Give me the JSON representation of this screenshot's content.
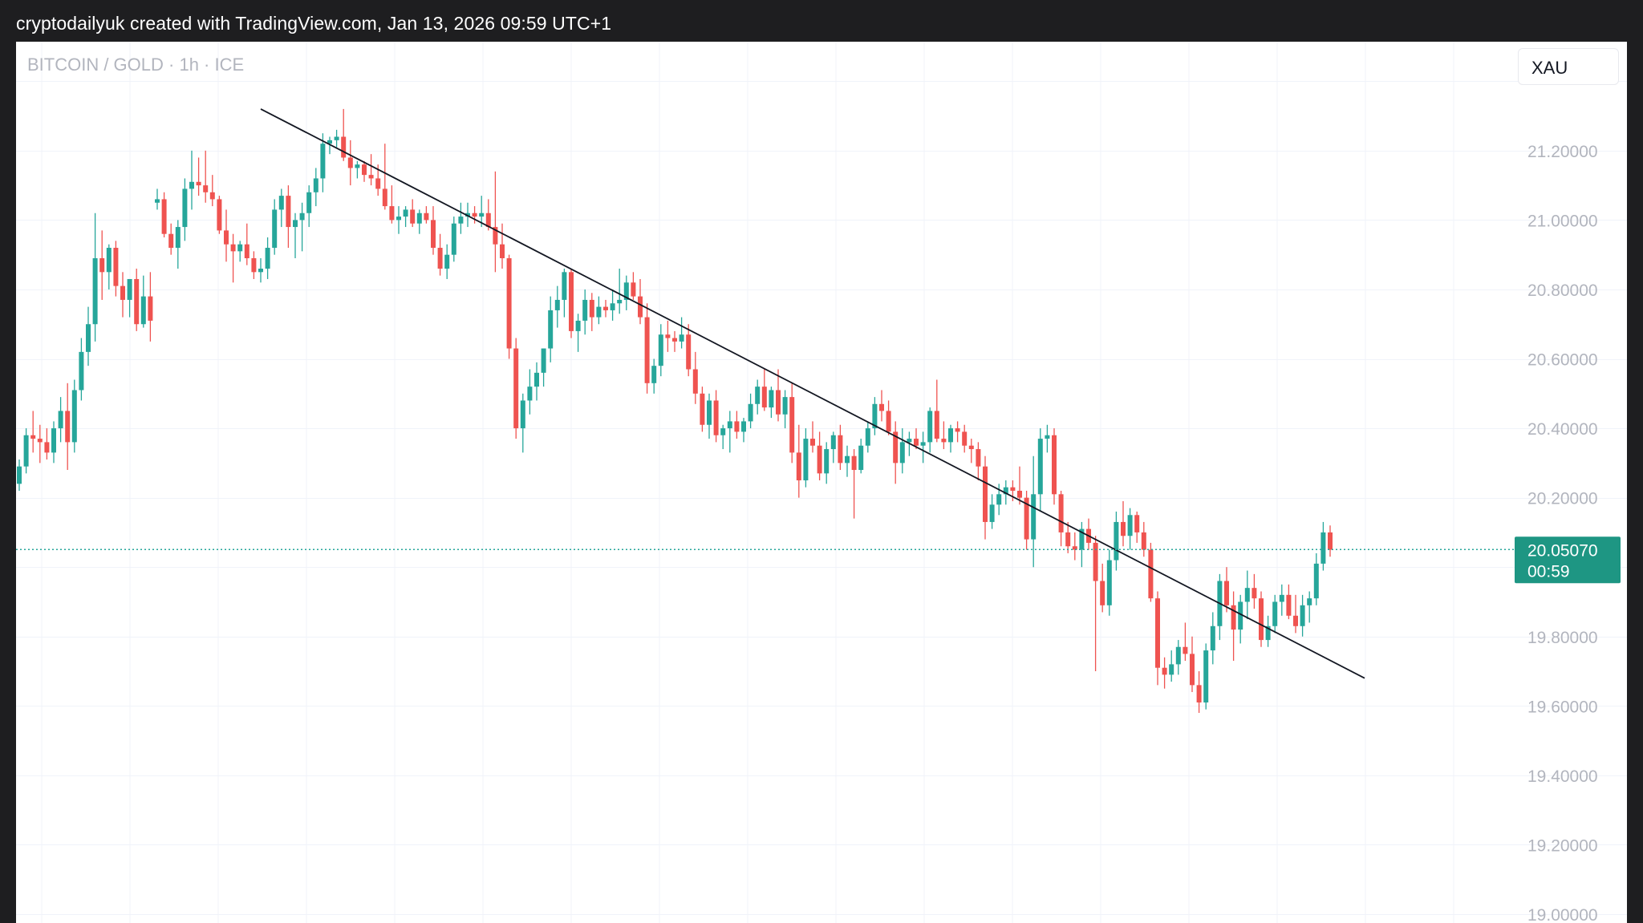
{
  "header": {
    "text": "cryptodailyuk created with TradingView.com, Jan 13, 2026 09:59 UTC+1"
  },
  "symbol": {
    "label": "BITCOIN / GOLD · 1h · ICE",
    "compare": "XAU"
  },
  "chart_data": {
    "type": "candlestick",
    "title": "",
    "ylim": [
      19.0,
      21.45
    ],
    "y_ticks": [
      "21.20000",
      "21.00000",
      "20.80000",
      "20.60000",
      "20.40000",
      "20.20000",
      "19.80000",
      "19.60000",
      "19.40000",
      "19.20000",
      "19.00000"
    ],
    "y_tick_values": [
      21.2,
      21.0,
      20.8,
      20.6,
      20.4,
      20.2,
      19.8,
      19.6,
      19.4,
      19.2,
      19.0
    ],
    "last_price": {
      "value": 20.0507,
      "label": "20.05070",
      "countdown": "00:59"
    },
    "trendline": {
      "from": {
        "bar": 35,
        "price": 21.32
      },
      "to": {
        "bar": 195,
        "price": 19.68
      }
    },
    "colors": {
      "up": "#26a69a",
      "down": "#ef5350",
      "price_tag": "#1e9683",
      "grid": "#f0f3fa",
      "trendline": "#131722"
    },
    "candles": [
      [
        20.24,
        20.31,
        20.22,
        20.29
      ],
      [
        20.29,
        20.4,
        20.27,
        20.38
      ],
      [
        20.38,
        20.45,
        20.33,
        20.37
      ],
      [
        20.37,
        20.41,
        20.3,
        20.36
      ],
      [
        20.36,
        20.4,
        20.31,
        20.33
      ],
      [
        20.33,
        20.42,
        20.3,
        20.4
      ],
      [
        20.4,
        20.49,
        20.36,
        20.45
      ],
      [
        20.45,
        20.53,
        20.28,
        20.36
      ],
      [
        20.36,
        20.54,
        20.33,
        20.51
      ],
      [
        20.51,
        20.66,
        20.48,
        20.62
      ],
      [
        20.62,
        20.75,
        20.58,
        20.7
      ],
      [
        20.7,
        21.02,
        20.65,
        20.89
      ],
      [
        20.89,
        20.97,
        20.77,
        20.85
      ],
      [
        20.85,
        20.93,
        20.8,
        20.92
      ],
      [
        20.92,
        20.94,
        20.78,
        20.81
      ],
      [
        20.81,
        20.85,
        20.72,
        20.77
      ],
      [
        20.77,
        20.83,
        20.72,
        20.83
      ],
      [
        20.83,
        20.86,
        20.68,
        20.7
      ],
      [
        20.7,
        20.84,
        20.69,
        20.78
      ],
      [
        20.78,
        20.85,
        20.65,
        20.71
      ],
      [
        21.05,
        21.09,
        21.03,
        21.06
      ],
      [
        21.06,
        21.08,
        20.95,
        20.96
      ],
      [
        20.96,
        20.99,
        20.9,
        20.92
      ],
      [
        20.92,
        21.0,
        20.86,
        20.98
      ],
      [
        20.98,
        21.12,
        20.94,
        21.09
      ],
      [
        21.09,
        21.2,
        21.03,
        21.11
      ],
      [
        21.11,
        21.18,
        21.07,
        21.1
      ],
      [
        21.1,
        21.2,
        21.05,
        21.08
      ],
      [
        21.08,
        21.13,
        21.04,
        21.06
      ],
      [
        21.06,
        21.07,
        20.96,
        20.97
      ],
      [
        20.97,
        21.03,
        20.88,
        20.93
      ],
      [
        20.93,
        20.96,
        20.82,
        20.91
      ],
      [
        20.91,
        20.94,
        20.88,
        20.93
      ],
      [
        20.93,
        20.99,
        20.87,
        20.89
      ],
      [
        20.89,
        20.91,
        20.83,
        20.85
      ],
      [
        20.85,
        20.89,
        20.82,
        20.86
      ],
      [
        20.86,
        20.95,
        20.83,
        20.92
      ],
      [
        20.92,
        21.06,
        20.9,
        21.03
      ],
      [
        21.03,
        21.09,
        20.98,
        21.07
      ],
      [
        21.07,
        21.1,
        20.92,
        20.98
      ],
      [
        20.98,
        21.02,
        20.89,
        21.0
      ],
      [
        21.0,
        21.05,
        20.91,
        21.02
      ],
      [
        21.02,
        21.1,
        20.98,
        21.08
      ],
      [
        21.08,
        21.15,
        21.04,
        21.12
      ],
      [
        21.12,
        21.25,
        21.08,
        21.22
      ],
      [
        21.22,
        21.24,
        21.19,
        21.23
      ],
      [
        21.23,
        21.26,
        21.21,
        21.24
      ],
      [
        21.24,
        21.32,
        21.17,
        21.18
      ],
      [
        21.18,
        21.23,
        21.1,
        21.15
      ],
      [
        21.15,
        21.17,
        21.12,
        21.16
      ],
      [
        21.16,
        21.17,
        21.11,
        21.13
      ],
      [
        21.13,
        21.19,
        21.1,
        21.12
      ],
      [
        21.12,
        21.16,
        21.07,
        21.09
      ],
      [
        21.09,
        21.22,
        21.03,
        21.04
      ],
      [
        21.04,
        21.1,
        20.99,
        21.0
      ],
      [
        21.0,
        21.04,
        20.96,
        21.01
      ],
      [
        21.01,
        21.04,
        20.98,
        21.03
      ],
      [
        21.03,
        21.06,
        20.98,
        20.99
      ],
      [
        20.99,
        21.03,
        20.96,
        21.02
      ],
      [
        21.02,
        21.04,
        20.99,
        21.0
      ],
      [
        21.0,
        21.04,
        20.9,
        20.92
      ],
      [
        20.92,
        20.96,
        20.84,
        20.86
      ],
      [
        20.86,
        20.93,
        20.83,
        20.9
      ],
      [
        20.9,
        21.01,
        20.88,
        20.99
      ],
      [
        20.99,
        21.05,
        20.96,
        21.01
      ],
      [
        21.01,
        21.05,
        20.98,
        21.02
      ],
      [
        21.02,
        21.04,
        20.99,
        21.01
      ],
      [
        21.01,
        21.07,
        20.98,
        21.02
      ],
      [
        21.02,
        21.06,
        20.97,
        20.98
      ],
      [
        20.98,
        21.14,
        20.85,
        20.93
      ],
      [
        20.93,
        20.99,
        20.86,
        20.89
      ],
      [
        20.89,
        20.9,
        20.6,
        20.63
      ],
      [
        20.63,
        20.66,
        20.37,
        20.4
      ],
      [
        20.4,
        20.5,
        20.33,
        20.48
      ],
      [
        20.48,
        20.57,
        20.44,
        20.52
      ],
      [
        20.52,
        20.59,
        20.48,
        20.56
      ],
      [
        20.56,
        20.63,
        20.52,
        20.63
      ],
      [
        20.63,
        20.78,
        20.59,
        20.74
      ],
      [
        20.74,
        20.81,
        20.69,
        20.77
      ],
      [
        20.77,
        20.86,
        20.72,
        20.85
      ],
      [
        20.85,
        20.86,
        20.66,
        20.68
      ],
      [
        20.68,
        20.73,
        20.62,
        20.71
      ],
      [
        20.71,
        20.8,
        20.67,
        20.77
      ],
      [
        20.77,
        20.79,
        20.68,
        20.72
      ],
      [
        20.72,
        20.78,
        20.7,
        20.75
      ],
      [
        20.75,
        20.77,
        20.72,
        20.74
      ],
      [
        20.74,
        20.8,
        20.71,
        20.76
      ],
      [
        20.76,
        20.86,
        20.73,
        20.77
      ],
      [
        20.77,
        20.84,
        20.74,
        20.82
      ],
      [
        20.82,
        20.85,
        20.77,
        20.78
      ],
      [
        20.78,
        20.83,
        20.7,
        20.72
      ],
      [
        20.72,
        20.76,
        20.5,
        20.53
      ],
      [
        20.53,
        20.6,
        20.5,
        20.58
      ],
      [
        20.58,
        20.7,
        20.55,
        20.67
      ],
      [
        20.67,
        20.71,
        20.62,
        20.66
      ],
      [
        20.66,
        20.68,
        20.62,
        20.65
      ],
      [
        20.65,
        20.72,
        20.63,
        20.67
      ],
      [
        20.67,
        20.7,
        20.55,
        20.57
      ],
      [
        20.57,
        20.62,
        20.47,
        20.5
      ],
      [
        20.5,
        20.52,
        20.39,
        20.41
      ],
      [
        20.41,
        20.5,
        20.37,
        20.48
      ],
      [
        20.48,
        20.51,
        20.36,
        20.38
      ],
      [
        20.38,
        20.41,
        20.34,
        20.4
      ],
      [
        20.4,
        20.45,
        20.33,
        20.42
      ],
      [
        20.42,
        20.45,
        20.37,
        20.39
      ],
      [
        20.39,
        20.43,
        20.36,
        20.42
      ],
      [
        20.42,
        20.5,
        20.4,
        20.47
      ],
      [
        20.47,
        20.54,
        20.44,
        20.52
      ],
      [
        20.52,
        20.57,
        20.45,
        20.46
      ],
      [
        20.46,
        20.52,
        20.43,
        20.51
      ],
      [
        20.51,
        20.57,
        20.42,
        20.44
      ],
      [
        20.44,
        20.51,
        20.4,
        20.49
      ],
      [
        20.49,
        20.53,
        20.3,
        20.33
      ],
      [
        20.33,
        20.41,
        20.2,
        20.25
      ],
      [
        20.25,
        20.4,
        20.23,
        20.37
      ],
      [
        20.37,
        20.42,
        20.33,
        20.35
      ],
      [
        20.35,
        20.39,
        20.25,
        20.27
      ],
      [
        20.27,
        20.36,
        20.24,
        20.34
      ],
      [
        20.34,
        20.39,
        20.3,
        20.38
      ],
      [
        20.38,
        20.41,
        20.28,
        20.3
      ],
      [
        20.3,
        20.35,
        20.26,
        20.32
      ],
      [
        20.32,
        20.34,
        20.14,
        20.28
      ],
      [
        20.28,
        20.37,
        20.27,
        20.35
      ],
      [
        20.35,
        20.42,
        20.33,
        20.4
      ],
      [
        20.4,
        20.49,
        20.38,
        20.47
      ],
      [
        20.47,
        20.51,
        20.42,
        20.45
      ],
      [
        20.45,
        20.48,
        20.38,
        20.39
      ],
      [
        20.39,
        20.42,
        20.24,
        20.3
      ],
      [
        20.3,
        20.4,
        20.27,
        20.36
      ],
      [
        20.36,
        20.39,
        20.32,
        20.37
      ],
      [
        20.37,
        20.4,
        20.34,
        20.35
      ],
      [
        20.35,
        20.39,
        20.3,
        20.36
      ],
      [
        20.36,
        20.46,
        20.33,
        20.45
      ],
      [
        20.45,
        20.54,
        20.36,
        20.37
      ],
      [
        20.37,
        20.42,
        20.34,
        20.36
      ],
      [
        20.36,
        20.41,
        20.33,
        20.4
      ],
      [
        20.4,
        20.42,
        20.36,
        20.39
      ],
      [
        20.39,
        20.41,
        20.33,
        20.35
      ],
      [
        20.35,
        20.37,
        20.3,
        20.34
      ],
      [
        20.34,
        20.36,
        20.25,
        20.29
      ],
      [
        20.29,
        20.32,
        20.08,
        20.13
      ],
      [
        20.13,
        20.21,
        20.11,
        20.18
      ],
      [
        20.18,
        20.24,
        20.15,
        20.21
      ],
      [
        20.21,
        20.25,
        20.18,
        20.23
      ],
      [
        20.23,
        20.25,
        20.19,
        20.22
      ],
      [
        20.22,
        20.29,
        20.18,
        20.2
      ],
      [
        20.2,
        20.22,
        20.05,
        20.08
      ],
      [
        20.08,
        20.32,
        20.0,
        20.21
      ],
      [
        20.21,
        20.4,
        20.16,
        20.37
      ],
      [
        20.37,
        20.41,
        20.33,
        20.38
      ],
      [
        20.38,
        20.4,
        20.18,
        20.21
      ],
      [
        20.21,
        20.22,
        20.06,
        20.1
      ],
      [
        20.1,
        20.13,
        20.04,
        20.06
      ],
      [
        20.06,
        20.1,
        20.02,
        20.05
      ],
      [
        20.05,
        20.13,
        20.0,
        20.11
      ],
      [
        20.11,
        20.14,
        20.05,
        20.07
      ],
      [
        20.07,
        20.09,
        19.7,
        19.96
      ],
      [
        19.96,
        20.01,
        19.87,
        19.89
      ],
      [
        19.89,
        20.05,
        19.86,
        20.02
      ],
      [
        20.02,
        20.16,
        19.99,
        20.13
      ],
      [
        20.13,
        20.19,
        20.06,
        20.09
      ],
      [
        20.09,
        20.17,
        20.05,
        20.15
      ],
      [
        20.15,
        20.16,
        20.07,
        20.1
      ],
      [
        20.1,
        20.13,
        20.03,
        20.05
      ],
      [
        20.05,
        20.07,
        19.9,
        19.91
      ],
      [
        19.91,
        19.93,
        19.66,
        19.71
      ],
      [
        19.71,
        19.74,
        19.65,
        19.69
      ],
      [
        19.69,
        19.76,
        19.67,
        19.72
      ],
      [
        19.72,
        19.79,
        19.69,
        19.77
      ],
      [
        19.77,
        19.84,
        19.73,
        19.75
      ],
      [
        19.75,
        19.8,
        19.64,
        19.66
      ],
      [
        19.66,
        19.7,
        19.58,
        19.61
      ],
      [
        19.61,
        19.78,
        19.59,
        19.76
      ],
      [
        19.76,
        19.87,
        19.72,
        19.83
      ],
      [
        19.83,
        19.98,
        19.79,
        19.96
      ],
      [
        19.96,
        20.0,
        19.87,
        19.89
      ],
      [
        19.89,
        19.93,
        19.73,
        19.82
      ],
      [
        19.82,
        19.92,
        19.78,
        19.9
      ],
      [
        19.9,
        19.99,
        19.85,
        19.94
      ],
      [
        19.94,
        19.98,
        19.88,
        19.91
      ],
      [
        19.91,
        19.93,
        19.77,
        19.79
      ],
      [
        19.79,
        19.86,
        19.77,
        19.83
      ],
      [
        19.83,
        19.92,
        19.81,
        19.9
      ],
      [
        19.9,
        19.95,
        19.86,
        19.92
      ],
      [
        19.92,
        19.95,
        19.85,
        19.86
      ],
      [
        19.86,
        19.92,
        19.81,
        19.83
      ],
      [
        19.83,
        19.92,
        19.8,
        19.89
      ],
      [
        19.89,
        19.93,
        19.84,
        19.91
      ],
      [
        19.91,
        20.04,
        19.89,
        20.01
      ],
      [
        20.01,
        20.13,
        19.99,
        20.1
      ],
      [
        20.1,
        20.12,
        20.03,
        20.05
      ]
    ]
  }
}
